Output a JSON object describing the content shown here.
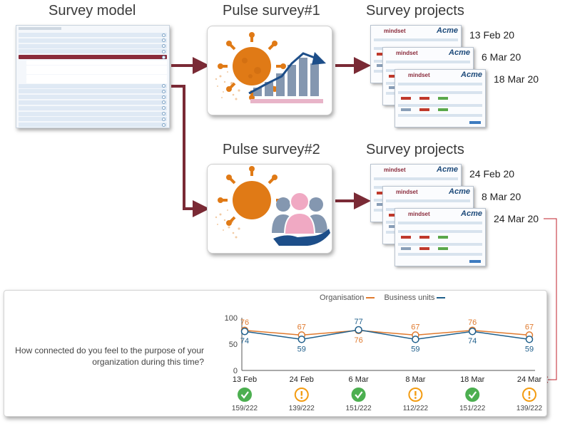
{
  "headings": {
    "survey_model": "Survey model",
    "pulse1": "Pulse survey#1",
    "projects1": "Survey projects",
    "pulse2": "Pulse survey#2",
    "projects2": "Survey projects"
  },
  "projects_group1": [
    "13 Feb 20",
    "6 Mar 20",
    "18 Mar 20"
  ],
  "projects_group2": [
    "24 Feb 20",
    "8 Mar 20",
    "24 Mar 20"
  ],
  "project_card": {
    "logo": "mindset",
    "brand": "Acme"
  },
  "colors": {
    "arrow": "#7a2a35",
    "organisation": "#e07a2e",
    "business_units": "#1f5f8b",
    "check": "#4caf50",
    "warn": "#f39c12"
  },
  "icons": {
    "pulse1": "virus-with-rising-bar-chart-icon",
    "pulse2": "virus-with-group-hand-icon"
  },
  "chart_data": {
    "type": "line",
    "question": "How connected do you feel to the purpose of your organization during this time?",
    "categories": [
      "13 Feb",
      "24 Feb",
      "6 Mar",
      "8 Mar",
      "18 Mar",
      "24 Mar"
    ],
    "series": [
      {
        "name": "Organisation",
        "values": [
          76,
          67,
          76,
          67,
          76,
          67
        ]
      },
      {
        "name": "Business units",
        "values": [
          74,
          59,
          77,
          59,
          74,
          59
        ]
      }
    ],
    "ylim": [
      0,
      100
    ],
    "yticks": [
      0,
      50,
      100
    ],
    "legend_position": "top-center",
    "status": [
      {
        "icon": "check-circle-icon",
        "responses": "159/222"
      },
      {
        "icon": "warning-circle-icon",
        "responses": "139/222"
      },
      {
        "icon": "check-circle-icon",
        "responses": "151/222"
      },
      {
        "icon": "warning-circle-icon",
        "responses": "112/222"
      },
      {
        "icon": "check-circle-icon",
        "responses": "151/222"
      },
      {
        "icon": "warning-circle-icon",
        "responses": "139/222"
      }
    ]
  }
}
